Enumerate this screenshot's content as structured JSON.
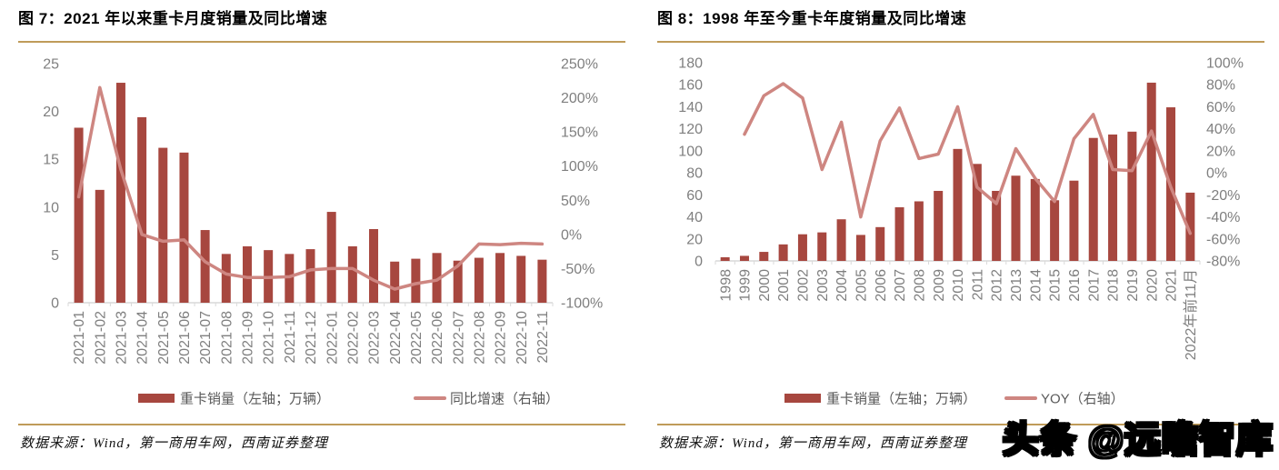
{
  "watermark": {
    "text": "头条 @远瞻智库"
  },
  "colors": {
    "bar": "#A7473F",
    "line": "#CE8681",
    "axis_text": "#7F7F7F",
    "axis_line": "#D9D9D9",
    "legend_text": "#595959",
    "gold_rule": "#BF9B59",
    "title_text": "#000000"
  },
  "panels": [
    {
      "title": "图 7：2021 年以来重卡月度销量及同比增速",
      "source": "数据来源：Wind，第一商用车网，西南证券整理"
    },
    {
      "title": "图 8：1998 年至今重卡年度销量及同比增速",
      "source": "数据来源：Wind，第一商用车网，西南证券整理"
    }
  ],
  "chart_data": [
    {
      "type": "bar+line",
      "title": "图 7：2021 年以来重卡月度销量及同比增速",
      "categories": [
        "2021-01",
        "2021-02",
        "2021-03",
        "2021-04",
        "2021-05",
        "2021-06",
        "2021-07",
        "2021-08",
        "2021-09",
        "2021-10",
        "2021-11",
        "2021-12",
        "2022-01",
        "2022-02",
        "2022-03",
        "2022-04",
        "2022-05",
        "2022-06",
        "2022-07",
        "2022-08",
        "2022-09",
        "2022-10",
        "2022-11"
      ],
      "series": [
        {
          "name": "重卡销量（左轴；万辆）",
          "type": "bar",
          "axis": "left",
          "values": [
            18.3,
            11.8,
            23.0,
            19.4,
            16.2,
            15.7,
            7.6,
            5.1,
            5.9,
            5.5,
            5.1,
            5.6,
            9.5,
            5.9,
            7.7,
            4.3,
            4.6,
            5.2,
            4.4,
            4.7,
            5.2,
            4.9,
            4.5
          ]
        },
        {
          "name": "同比增速（右轴）",
          "type": "line",
          "axis": "right",
          "values": [
            55,
            215,
            95,
            0,
            -10,
            -8,
            -40,
            -58,
            -63,
            -63,
            -62,
            -52,
            -50,
            -50,
            -67,
            -80,
            -72,
            -67,
            -46,
            -14,
            -15,
            -13,
            -14
          ]
        }
      ],
      "left_axis": {
        "min": 0,
        "max": 25,
        "step": 5,
        "suffix": ""
      },
      "right_axis": {
        "min": -100,
        "max": 250,
        "step": 50,
        "suffix": "%"
      },
      "legend_position": "bottom",
      "grid": false
    },
    {
      "type": "bar+line",
      "title": "图 8：1998 年至今重卡年度销量及同比增速",
      "categories": [
        "1998",
        "1999",
        "2000",
        "2001",
        "2002",
        "2003",
        "2004",
        "2005",
        "2006",
        "2007",
        "2008",
        "2009",
        "2010",
        "2011",
        "2012",
        "2013",
        "2014",
        "2015",
        "2016",
        "2017",
        "2018",
        "2019",
        "2020",
        "2021",
        "2022年前11月"
      ],
      "series": [
        {
          "name": "重卡销量（左轴；万辆）",
          "type": "bar",
          "axis": "left",
          "values": [
            3.3,
            4.6,
            8.2,
            15.0,
            24.2,
            25.9,
            37.8,
            23.6,
            30.7,
            48.7,
            54.1,
            63.6,
            101.7,
            88.1,
            63.6,
            77.4,
            74.4,
            55.1,
            72.9,
            111.7,
            114.8,
            117.4,
            161.9,
            139.5,
            62.0
          ]
        },
        {
          "name": "YOY（右轴）",
          "type": "line",
          "axis": "right",
          "values": [
            null,
            35,
            70,
            81,
            68,
            3,
            46,
            -40,
            29,
            59,
            13,
            17,
            60,
            -13,
            -28,
            22,
            -5,
            -26,
            31,
            53,
            3,
            2,
            38,
            -13,
            -55
          ]
        }
      ],
      "left_axis": {
        "min": 0,
        "max": 180,
        "step": 20,
        "suffix": ""
      },
      "right_axis": {
        "min": -80,
        "max": 100,
        "step": 20,
        "suffix": "%"
      },
      "legend_position": "bottom",
      "grid": false
    }
  ]
}
